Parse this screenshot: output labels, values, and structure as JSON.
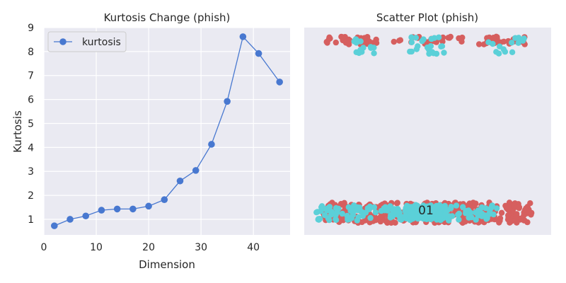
{
  "colors": {
    "background": "#eaeaf2",
    "grid": "#ffffff",
    "line": "#4878d0",
    "class_0": "#d65f5f",
    "class_1": "#5bd0d8"
  },
  "chart_data": [
    {
      "type": "line",
      "title": "Kurtosis Change (phish)",
      "xlabel": "Dimension",
      "ylabel": "Kurtosis",
      "xlim": [
        0,
        47
      ],
      "ylim": [
        0.35,
        9
      ],
      "xticks": [
        0,
        10,
        20,
        30,
        40
      ],
      "yticks": [
        1,
        2,
        3,
        4,
        5,
        6,
        7,
        8,
        9
      ],
      "grid": true,
      "legend": "top-left",
      "series": [
        {
          "name": "kurtosis",
          "x": [
            2,
            5,
            8,
            11,
            14,
            17,
            20,
            23,
            26,
            29,
            32,
            35,
            38,
            41,
            45
          ],
          "y": [
            0.73,
            1.0,
            1.14,
            1.38,
            1.43,
            1.43,
            1.55,
            1.82,
            2.6,
            3.04,
            4.13,
            5.92,
            8.62,
            7.92,
            6.73
          ]
        }
      ]
    },
    {
      "type": "scatter",
      "title": "Scatter Plot (phish)",
      "grid": false,
      "annotation": "01",
      "clusters": [
        {
          "class": 0,
          "x_range": [
            0.05,
            0.95
          ],
          "y_range": [
            0.85,
            1.7
          ],
          "count": 380
        },
        {
          "class": 1,
          "x_range": [
            0.02,
            0.8
          ],
          "y_range": [
            0.95,
            1.6
          ],
          "count": 170
        },
        {
          "class": 1,
          "x_range": [
            0.4,
            0.58
          ],
          "y_range": [
            1.0,
            1.6
          ],
          "count": 120
        },
        {
          "class": 0,
          "x_range": [
            0.05,
            0.28
          ],
          "y_range": [
            8.3,
            8.65
          ],
          "count": 40
        },
        {
          "class": 0,
          "x_range": [
            0.35,
            0.65
          ],
          "y_range": [
            8.3,
            8.65
          ],
          "count": 25
        },
        {
          "class": 0,
          "x_range": [
            0.72,
            0.92
          ],
          "y_range": [
            8.3,
            8.65
          ],
          "count": 30
        },
        {
          "class": 1,
          "x_range": [
            0.18,
            0.28
          ],
          "y_range": [
            7.9,
            8.6
          ],
          "count": 15
        },
        {
          "class": 1,
          "x_range": [
            0.4,
            0.58
          ],
          "y_range": [
            7.9,
            8.6
          ],
          "count": 22
        },
        {
          "class": 1,
          "x_range": [
            0.75,
            0.92
          ],
          "y_range": [
            7.9,
            8.6
          ],
          "count": 14
        }
      ]
    }
  ]
}
